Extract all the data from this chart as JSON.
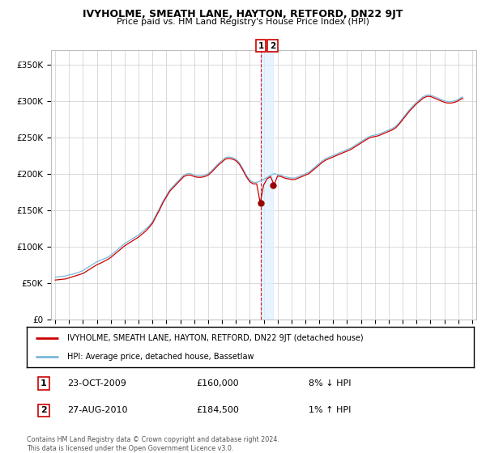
{
  "title": "IVYHOLME, SMEATH LANE, HAYTON, RETFORD, DN22 9JT",
  "subtitle": "Price paid vs. HM Land Registry's House Price Index (HPI)",
  "background_color": "#ffffff",
  "plot_bg_color": "#ffffff",
  "grid_color": "#cccccc",
  "ylim": [
    0,
    370000
  ],
  "yticks": [
    0,
    50000,
    100000,
    150000,
    200000,
    250000,
    300000,
    350000
  ],
  "ytick_labels": [
    "£0",
    "£50K",
    "£100K",
    "£150K",
    "£200K",
    "£250K",
    "£300K",
    "£350K"
  ],
  "hpi_color": "#7ab8d9",
  "price_color": "#cc0000",
  "marker_color": "#990000",
  "dashed_line_color": "#cc0000",
  "band_color": "#ddeeff",
  "legend_box_color": "#000000",
  "sale1_date": "23-OCT-2009",
  "sale1_price": "£160,000",
  "sale1_hpi": "8% ↓ HPI",
  "sale2_date": "27-AUG-2010",
  "sale2_price": "£184,500",
  "sale2_hpi": "1% ↑ HPI",
  "legend_line1": "IVYHOLME, SMEATH LANE, HAYTON, RETFORD, DN22 9JT (detached house)",
  "legend_line2": "HPI: Average price, detached house, Bassetlaw",
  "copyright_text": "Contains HM Land Registry data © Crown copyright and database right 2024.\nThis data is licensed under the Open Government Licence v3.0.",
  "sale1_x": 2009.81,
  "sale1_y": 160000,
  "sale2_x": 2010.65,
  "sale2_y": 184500,
  "xlim_left": 1994.7,
  "xlim_right": 2025.3
}
